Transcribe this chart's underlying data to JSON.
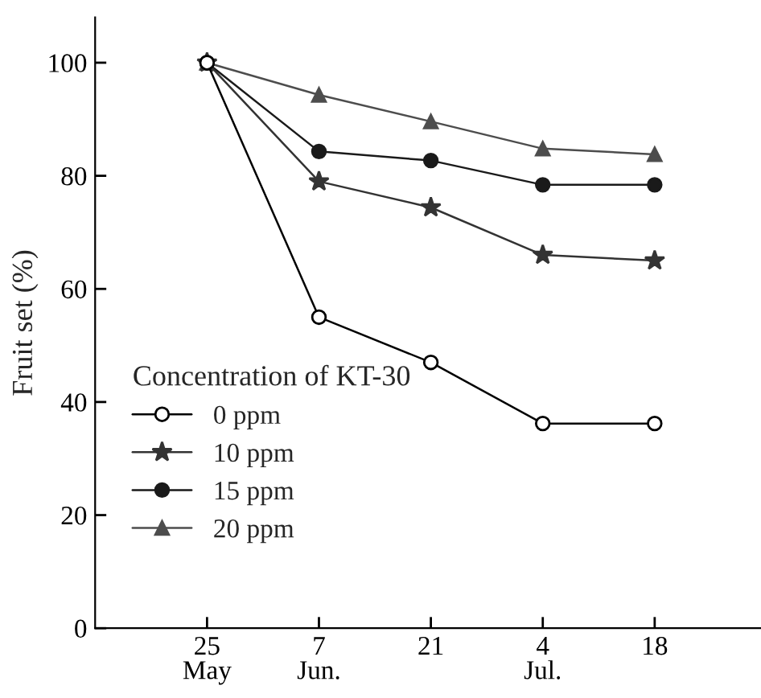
{
  "chart_data": {
    "type": "line",
    "ylabel": "Fruit set (%)",
    "legend_title": "Concentration of KT-30",
    "categories": [
      "25\nMay",
      "7\nJun.",
      "21",
      "4\nJul.",
      "18"
    ],
    "ylim": [
      0,
      108
    ],
    "yticks": [
      0,
      20,
      40,
      60,
      80,
      100
    ],
    "grid": false,
    "legend": "bottom left",
    "line_style": "solid",
    "series": [
      {
        "name": "0 ppm",
        "color": "#000000",
        "marker": "circle",
        "values": [
          100,
          55,
          47,
          36.2,
          36.2
        ]
      },
      {
        "name": "10 ppm",
        "color": "#333333",
        "marker": "star",
        "values": [
          100,
          79,
          74.4,
          66,
          65
        ]
      },
      {
        "name": "15 ppm",
        "color": "#1a1a1a",
        "marker": "circle",
        "values": [
          100,
          84.3,
          82.7,
          78.4,
          78.4
        ]
      },
      {
        "name": "20 ppm",
        "color": "#4d4d4d",
        "marker": "triangle",
        "values": [
          100,
          94.3,
          89.6,
          84.8,
          83.8
        ]
      }
    ]
  }
}
